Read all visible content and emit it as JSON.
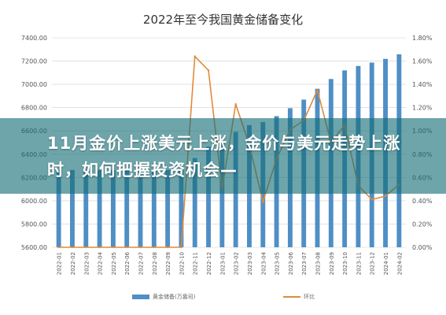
{
  "chart_data": {
    "type": "bar+line",
    "title": "2022年至今我国黄金储备变化",
    "categories": [
      "2022-01",
      "2022-02",
      "2022-03",
      "2022-04",
      "2022-05",
      "2022-06",
      "2022-07",
      "2022-08",
      "2022-09",
      "2022-10",
      "2022-11",
      "2022-12",
      "2023-01",
      "2023-02",
      "2023-03",
      "2023-04",
      "2023-05",
      "2023-06",
      "2023-07",
      "2023-08",
      "2023-09",
      "2023-10",
      "2023-11",
      "2023-12",
      "2024-01",
      "2024-02"
    ],
    "left_axis": {
      "ylim": [
        5600,
        7400
      ],
      "ticks": [
        "5600.00",
        "5800.00",
        "6000.00",
        "6200.00",
        "6400.00",
        "6600.00",
        "6800.00",
        "7000.00",
        "7200.00",
        "7400.00"
      ]
    },
    "right_axis": {
      "ylim": [
        0,
        1.8
      ],
      "ticks": [
        "0.00%",
        "0.20%",
        "0.40%",
        "0.60%",
        "0.80%",
        "1.00%",
        "1.20%",
        "1.40%",
        "1.60%",
        "1.80%"
      ]
    },
    "series": [
      {
        "name": "黄金储备(万盎司)",
        "type": "bar",
        "axis": "left",
        "color": "#4f8fc5",
        "values": [
          6264,
          6264,
          6264,
          6264,
          6264,
          6264,
          6264,
          6264,
          6264,
          6264,
          6367,
          6464,
          6512,
          6592,
          6650,
          6676,
          6727,
          6795,
          6869,
          6962,
          7046,
          7120,
          7158,
          7187,
          7219,
          7258
        ]
      },
      {
        "name": "环比",
        "type": "line",
        "axis": "right",
        "color": "#e08a3c",
        "values": [
          0,
          0,
          0,
          0,
          0,
          0,
          0,
          0,
          0,
          0,
          1.64,
          1.52,
          0.5,
          1.23,
          0.88,
          0.39,
          0.76,
          1.01,
          1.09,
          1.35,
          0.9,
          1.05,
          0.53,
          0.41,
          0.44,
          0.54
        ]
      }
    ]
  },
  "banner": {
    "text": "11月金价上涨美元上涨，金价与美元走势上涨时，如何把握投资机会—"
  },
  "legend": {
    "bar_label": "黄金储备(万盎司)",
    "line_label": "环比"
  }
}
